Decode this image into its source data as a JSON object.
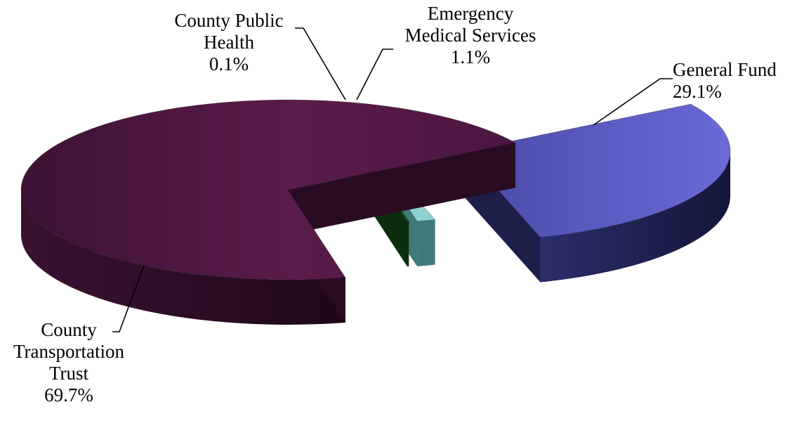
{
  "chart_data": {
    "type": "pie",
    "style": "3d-exploded",
    "title": "",
    "slices": [
      {
        "label_lines": [
          "General Fund"
        ],
        "percent_label": "29.1%",
        "value": 29.1,
        "color_top": "#5b5bc2",
        "color_side": "#1d1f4a"
      },
      {
        "label_lines": [
          "Emergency",
          "Medical Services"
        ],
        "percent_label": "1.1%",
        "value": 1.1,
        "color_top": "#8fd1d1",
        "color_side": "#3e7a7a"
      },
      {
        "label_lines": [
          "County Public",
          "Health"
        ],
        "percent_label": "0.1%",
        "value": 0.1,
        "color_top": "#1e5a1e",
        "color_side": "#0c2e0c"
      },
      {
        "label_lines": [
          "County",
          "Transportation",
          "Trust"
        ],
        "percent_label": "69.7%",
        "value": 69.7,
        "color_top": "#4d1840",
        "color_side": "#2a0c22"
      }
    ]
  }
}
